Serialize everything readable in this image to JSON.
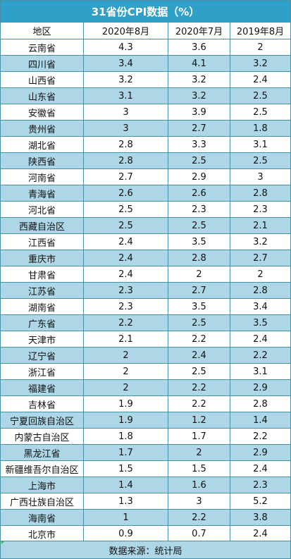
{
  "title": "31省份CPI数据（%）",
  "footer": "数据来源：统计局",
  "colors": {
    "title_bg": "#2fa0c8",
    "stripe": "#add6e6",
    "border": "#4a8fa6"
  },
  "chart_data": {
    "type": "table",
    "title": "31省份CPI数据（%）",
    "columns": [
      "地区",
      "2020年8月",
      "2020年7月",
      "2019年8月"
    ],
    "rows": [
      [
        "云南省",
        "4.3",
        "3.6",
        "2"
      ],
      [
        "四川省",
        "3.4",
        "4.1",
        "3.2"
      ],
      [
        "山西省",
        "3.2",
        "3.2",
        "2.4"
      ],
      [
        "山东省",
        "3.1",
        "3.2",
        "2.5"
      ],
      [
        "安徽省",
        "3",
        "3.9",
        "2.5"
      ],
      [
        "贵州省",
        "3",
        "2.7",
        "1.8"
      ],
      [
        "湖北省",
        "2.8",
        "3.3",
        "3.1"
      ],
      [
        "陕西省",
        "2.8",
        "2.5",
        "2.5"
      ],
      [
        "河南省",
        "2.7",
        "2.9",
        "3"
      ],
      [
        "青海省",
        "2.6",
        "2.6",
        "2.8"
      ],
      [
        "河北省",
        "2.5",
        "2.3",
        "2.3"
      ],
      [
        "西藏自治区",
        "2.5",
        "2.5",
        "2.1"
      ],
      [
        "江西省",
        "2.4",
        "3.5",
        "3.2"
      ],
      [
        "重庆市",
        "2.4",
        "2.8",
        "2.7"
      ],
      [
        "甘肃省",
        "2.4",
        "2",
        "2"
      ],
      [
        "江苏省",
        "2.3",
        "2.7",
        "2.8"
      ],
      [
        "湖南省",
        "2.3",
        "3.5",
        "3.4"
      ],
      [
        "广东省",
        "2.2",
        "2.5",
        "3.5"
      ],
      [
        "天津市",
        "2.1",
        "2.2",
        "2.4"
      ],
      [
        "辽宁省",
        "2",
        "2.4",
        "2.2"
      ],
      [
        "浙江省",
        "2",
        "2.5",
        "3.1"
      ],
      [
        "福建省",
        "2",
        "2.2",
        "2.9"
      ],
      [
        "吉林省",
        "1.9",
        "2.2",
        "2.8"
      ],
      [
        "宁夏回族自治区",
        "1.9",
        "1.2",
        "1.4"
      ],
      [
        "内蒙古自治区",
        "1.8",
        "1.7",
        "2.2"
      ],
      [
        "黑龙江省",
        "1.7",
        "2",
        "2.9"
      ],
      [
        "新疆维吾尔自治区",
        "1.5",
        "1.5",
        "2.4"
      ],
      [
        "上海市",
        "1.4",
        "1.6",
        "2.3"
      ],
      [
        "广西壮族自治区",
        "1.3",
        "3",
        "5.2"
      ],
      [
        "海南省",
        "1",
        "2.2",
        "3.8"
      ],
      [
        "北京市",
        "0.9",
        "0.7",
        "2.4"
      ]
    ]
  }
}
